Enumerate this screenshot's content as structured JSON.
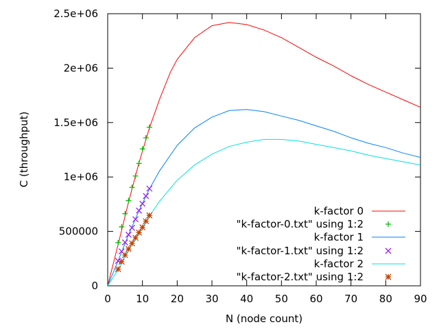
{
  "chart_data": {
    "type": "line",
    "title": "",
    "xlabel": "N (node count)",
    "ylabel": "C (throughput)",
    "xlim": [
      0,
      90
    ],
    "ylim": [
      0,
      2500000
    ],
    "x_ticks": [
      0,
      10,
      20,
      30,
      40,
      50,
      60,
      70,
      80,
      90
    ],
    "x_tick_labels": [
      "0",
      "10",
      "20",
      "30",
      "40",
      "50",
      "60",
      "70",
      "80",
      "90"
    ],
    "y_ticks": [
      0,
      500000,
      1000000,
      1500000,
      2000000,
      2500000
    ],
    "y_tick_labels": [
      "0",
      "500000",
      "1e+06",
      "1.5e+06",
      "2e+06",
      "2.5e+06"
    ],
    "grid": false,
    "legend_position": "bottom-right",
    "series": [
      {
        "name": "k-factor 0",
        "kind": "line",
        "color": "#ff0000",
        "x": [
          0,
          3,
          6,
          9,
          12,
          15,
          18,
          20,
          25,
          30,
          35,
          40,
          45,
          50,
          55,
          60,
          65,
          70,
          75,
          80,
          85,
          90
        ],
        "y": [
          0,
          380000,
          770000,
          1130000,
          1450000,
          1720000,
          1960000,
          2080000,
          2280000,
          2390000,
          2420000,
          2400000,
          2350000,
          2280000,
          2190000,
          2100000,
          2020000,
          1930000,
          1850000,
          1780000,
          1710000,
          1640000
        ]
      },
      {
        "name": "\"k-factor-0.txt\" using 1:2",
        "kind": "points",
        "marker": "plus",
        "color": "#00c000",
        "x": [
          3,
          4,
          5,
          6,
          7,
          8,
          9,
          10,
          11,
          12
        ],
        "y": [
          397000,
          542000,
          663000,
          783000,
          905000,
          1009000,
          1125000,
          1258000,
          1360000,
          1457000
        ]
      },
      {
        "name": "k-factor 1",
        "kind": "line",
        "color": "#0080ff",
        "x": [
          0,
          3,
          6,
          9,
          12,
          15,
          20,
          25,
          30,
          35,
          40,
          45,
          50,
          55,
          60,
          65,
          70,
          75,
          80,
          85,
          90
        ],
        "y": [
          0,
          230000,
          470000,
          690000,
          890000,
          1060000,
          1290000,
          1450000,
          1550000,
          1610000,
          1620000,
          1600000,
          1560000,
          1520000,
          1470000,
          1420000,
          1360000,
          1310000,
          1270000,
          1220000,
          1180000
        ]
      },
      {
        "name": "\"k-factor-1.txt\" using 1:2",
        "kind": "points",
        "marker": "cross",
        "color": "#a020f0",
        "x": [
          3,
          4,
          5,
          6,
          7,
          8,
          9,
          10,
          11,
          12
        ],
        "y": [
          229000,
          317000,
          399000,
          470000,
          533000,
          611000,
          691000,
          754000,
          825000,
          894000
        ]
      },
      {
        "name": "k-factor 2",
        "kind": "line",
        "color": "#00e0e0",
        "x": [
          0,
          3,
          6,
          9,
          12,
          15,
          20,
          25,
          30,
          35,
          40,
          45,
          50,
          55,
          60,
          65,
          70,
          75,
          80,
          85,
          90
        ],
        "y": [
          0,
          150000,
          340000,
          490000,
          640000,
          780000,
          970000,
          1110000,
          1210000,
          1280000,
          1320000,
          1345000,
          1345000,
          1330000,
          1300000,
          1270000,
          1240000,
          1200000,
          1170000,
          1140000,
          1110000
        ]
      },
      {
        "name": "\"k-factor-2.txt\" using 1:2",
        "kind": "points",
        "marker": "star",
        "color": "#c04000",
        "x": [
          3,
          4,
          5,
          6,
          7,
          8,
          9,
          10,
          11,
          12
        ],
        "y": [
          153000,
          222000,
          283000,
          338000,
          390000,
          441000,
          489000,
          537000,
          594000,
          647000
        ]
      }
    ]
  }
}
